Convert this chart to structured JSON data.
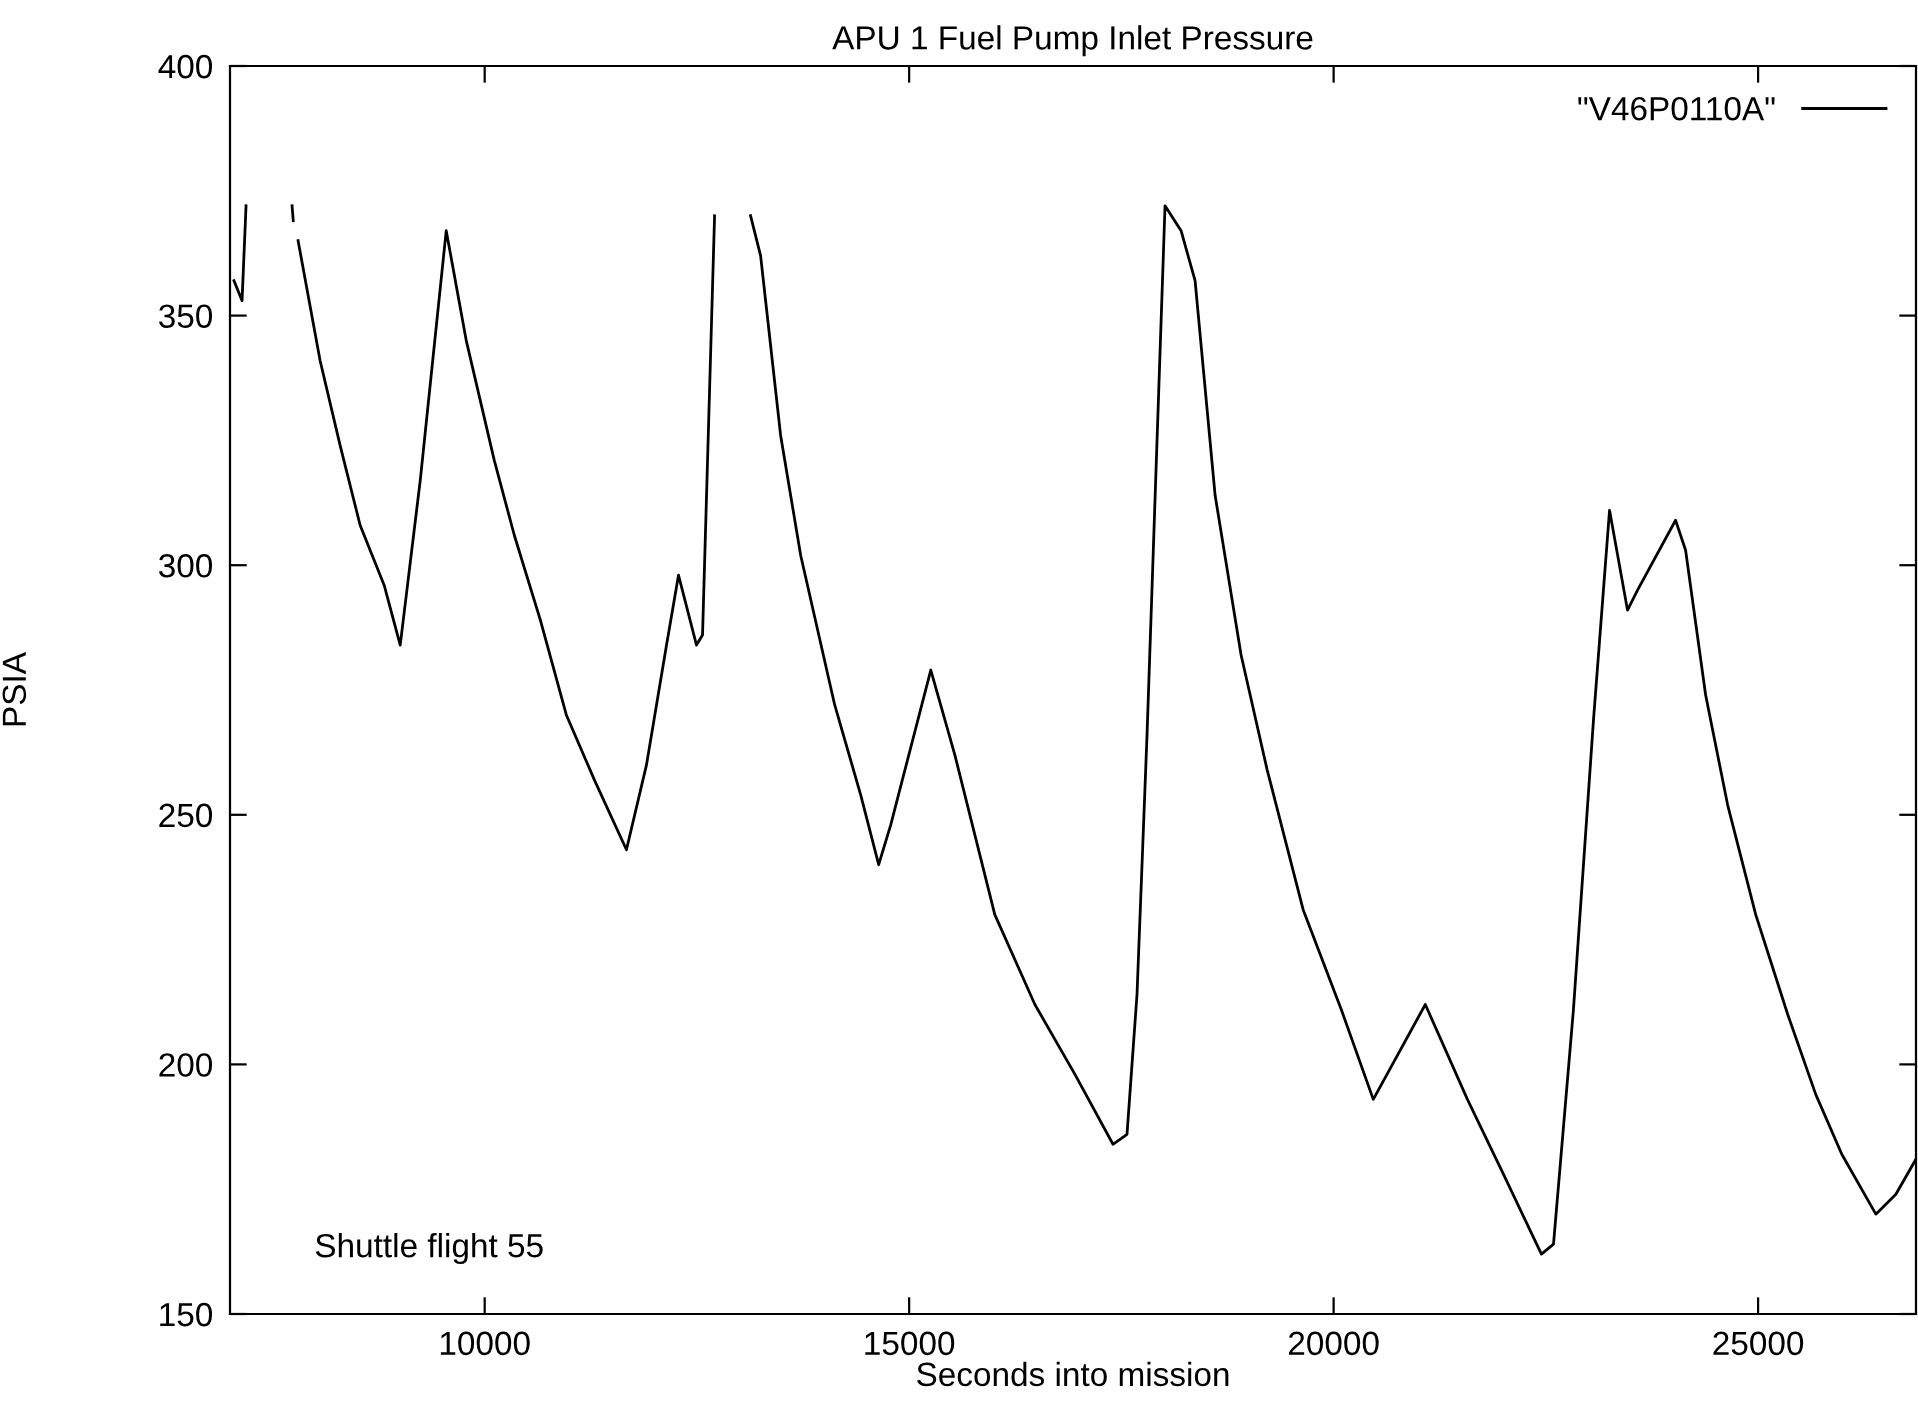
{
  "chart_data": {
    "type": "line",
    "title": "APU 1 Fuel Pump Inlet Pressure",
    "xlabel": "Seconds into mission",
    "ylabel": "PSIA",
    "annotations": [
      "Shuttle flight 55"
    ],
    "xlim": [
      7000,
      26860
    ],
    "xticks": [
      10000,
      15000,
      20000,
      25000
    ],
    "ylim": [
      150,
      400
    ],
    "yticks": [
      150,
      200,
      250,
      300,
      350,
      400
    ],
    "grid": false,
    "legend": "top right",
    "marker": "none",
    "line_style": "solid",
    "series": [
      {
        "name": "\"V46P0110A\"",
        "color": "#000000",
        "x": [
          7047,
          7142,
          7189,
          7450,
          7731,
          7745,
          7770,
          7802,
          8061,
          8297,
          8533,
          8816,
          9005,
          9241,
          9547,
          9783,
          10113,
          10349,
          10656,
          10962,
          11292,
          11670,
          11906,
          12142,
          12283,
          12495,
          12566,
          12708,
          12900,
          13132,
          13250,
          13486,
          13722,
          14123,
          14429,
          14641,
          14783,
          15255,
          15538,
          16009,
          16481,
          16953,
          17401,
          17566,
          17684,
          17802,
          18014,
          18203,
          18368,
          18604,
          18910,
          19217,
          19641,
          20090,
          20467,
          21080,
          21576,
          22000,
          22448,
          22590,
          22825,
          23061,
          23250,
          23462,
          23580,
          24028,
          24146,
          24382,
          24641,
          24972,
          25349,
          25679,
          25986,
          26387,
          26623,
          26859
        ],
        "values": [
          357,
          353,
          372,
          null,
          372,
          369,
          null,
          365,
          341,
          324,
          308,
          296,
          284,
          317,
          367,
          345,
          321,
          306,
          289,
          270,
          257,
          243,
          260,
          284,
          298,
          284,
          286,
          370,
          null,
          370,
          362,
          326,
          302,
          272,
          254,
          240,
          248,
          279,
          262,
          230,
          212,
          198,
          184,
          186,
          214,
          266,
          372,
          367,
          357,
          314,
          282,
          259,
          231,
          211,
          193,
          212,
          193,
          178,
          162,
          164,
          211,
          269,
          311,
          291,
          295,
          309,
          303,
          274,
          252,
          230,
          210,
          194,
          182,
          170,
          174,
          181
        ]
      }
    ]
  }
}
